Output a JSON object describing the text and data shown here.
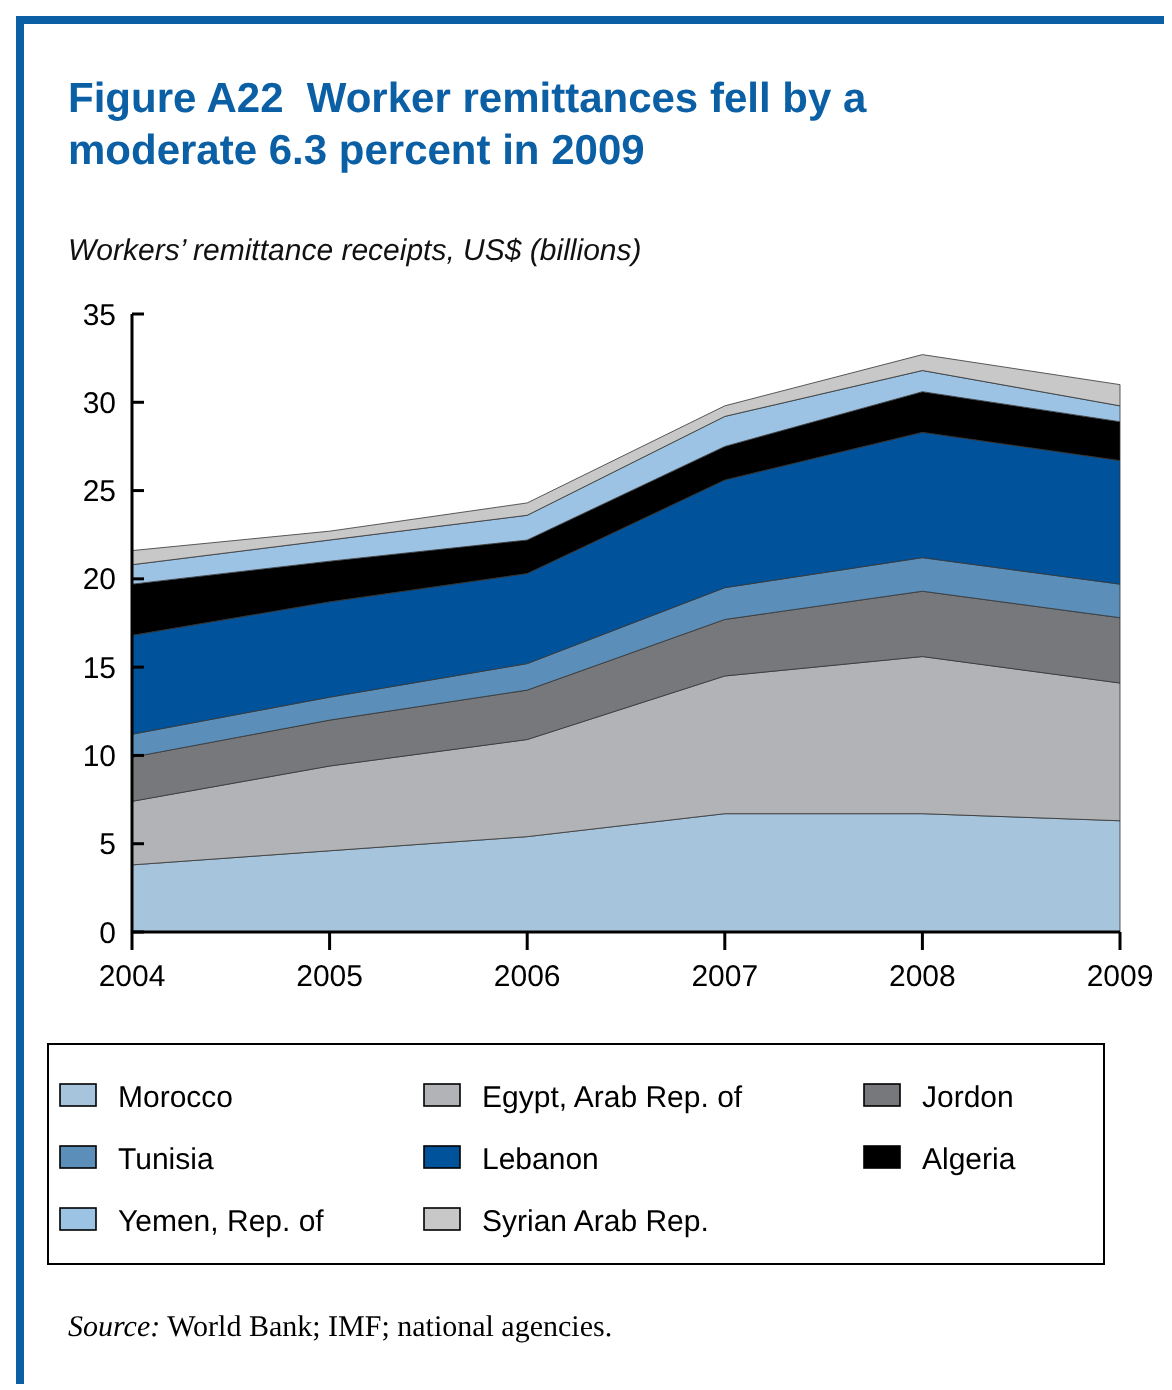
{
  "chart_data": {
    "type": "area",
    "stacked": true,
    "title": "Figure A22  Worker remittances fell by a moderate 6.3 percent in 2009",
    "ylabel": "Workers’ remittance receipts, US$ (billions)",
    "x": [
      2004,
      2005,
      2006,
      2007,
      2008,
      2009
    ],
    "xlim": [
      2004,
      2009
    ],
    "xticks": [
      2004,
      2005,
      2006,
      2007,
      2008,
      2009
    ],
    "ylim": [
      0,
      35
    ],
    "yticks": [
      0,
      5,
      10,
      15,
      20,
      25,
      30,
      35
    ],
    "grid": false,
    "legend": "bottom",
    "series": [
      {
        "name": "Morocco",
        "color": "#a6c4dc",
        "values": [
          3.8,
          4.6,
          5.4,
          6.7,
          6.7,
          6.3
        ]
      },
      {
        "name": "Egypt, Arab Rep. of",
        "color": "#b1b3b6",
        "values": [
          3.6,
          4.8,
          5.5,
          7.8,
          8.9,
          7.8
        ]
      },
      {
        "name": "Jordon",
        "color": "#77787b",
        "values": [
          2.5,
          2.6,
          2.8,
          3.2,
          3.7,
          3.7
        ]
      },
      {
        "name": "Tunisia",
        "color": "#5b8fb9",
        "values": [
          1.3,
          1.3,
          1.5,
          1.8,
          1.9,
          1.9
        ]
      },
      {
        "name": "Lebanon",
        "color": "#00539b",
        "values": [
          5.6,
          5.4,
          5.1,
          6.1,
          7.1,
          7.0
        ]
      },
      {
        "name": "Algeria",
        "color": "#000000",
        "values": [
          2.9,
          2.3,
          1.9,
          1.9,
          2.3,
          2.2
        ]
      },
      {
        "name": "Yemen, Rep. of",
        "color": "#9cc3e4",
        "values": [
          1.1,
          1.2,
          1.4,
          1.7,
          1.2,
          0.9
        ]
      },
      {
        "name": "Syrian Arab Rep.",
        "color": "#c8c8c8",
        "values": [
          0.8,
          0.5,
          0.7,
          0.6,
          0.9,
          1.2
        ]
      }
    ],
    "annotations": [
      "Source: World Bank; IMF; national agencies."
    ]
  }
}
